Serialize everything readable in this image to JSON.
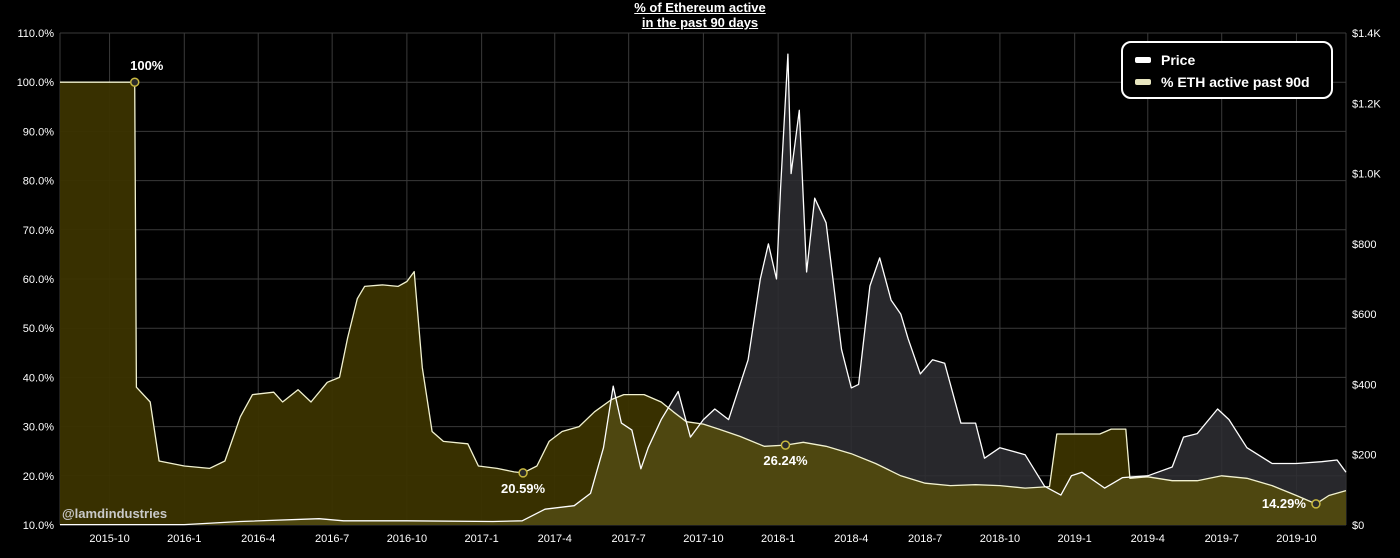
{
  "title_line1": "% of Ethereum active",
  "title_line2": "in the past 90 days",
  "watermark": "@lamdindustries",
  "legend": {
    "price_label": "Price",
    "active_label": "% ETH active past 90d"
  },
  "colors": {
    "price": "#ffffff",
    "active_line": "#f2f2d0",
    "active_fill": "#3b3300",
    "active_fill_bright": "#4e4710",
    "price_fill": "#2e2e32",
    "grid": "#3a3a3a",
    "highlight": "#c8b840"
  },
  "chart_data": {
    "type": "area",
    "title": "% of Ethereum active in the past 90 days",
    "x_ticks": [
      "2015-10",
      "2016-1",
      "2016-4",
      "2016-7",
      "2016-10",
      "2017-1",
      "2017-4",
      "2017-7",
      "2017-10",
      "2018-1",
      "2018-4",
      "2018-7",
      "2018-10",
      "2019-1",
      "2019-4",
      "2019-7",
      "2019-10"
    ],
    "y_left_ticks": [
      "10.0%",
      "20.0%",
      "30.0%",
      "40.0%",
      "50.0%",
      "60.0%",
      "70.0%",
      "80.0%",
      "90.0%",
      "100.0%",
      "110.0%"
    ],
    "y_right_ticks": [
      "$0",
      "$200",
      "$400",
      "$600",
      "$800",
      "$1.0K",
      "$1.2K",
      "$1.4K"
    ],
    "y_left_range": [
      10,
      110
    ],
    "y_right_range": [
      0,
      1400
    ],
    "x_range": [
      "2015-08-01",
      "2019-12-01"
    ],
    "grid": true,
    "legend_position": "top-right",
    "series": [
      {
        "name": "% ETH active past 90d",
        "axis": "left",
        "points": [
          [
            "2015-08-01",
            100
          ],
          [
            "2015-11-01",
            100
          ],
          [
            "2015-11-03",
            38
          ],
          [
            "2015-11-20",
            35
          ],
          [
            "2015-12-01",
            23
          ],
          [
            "2016-01-01",
            22
          ],
          [
            "2016-02-01",
            21.5
          ],
          [
            "2016-02-20",
            23
          ],
          [
            "2016-03-10",
            32
          ],
          [
            "2016-03-25",
            36.5
          ],
          [
            "2016-04-20",
            37
          ],
          [
            "2016-05-01",
            35
          ],
          [
            "2016-05-20",
            37.5
          ],
          [
            "2016-06-05",
            35
          ],
          [
            "2016-06-25",
            39
          ],
          [
            "2016-07-10",
            40
          ],
          [
            "2016-07-20",
            48
          ],
          [
            "2016-08-01",
            56
          ],
          [
            "2016-08-10",
            58.5
          ],
          [
            "2016-09-01",
            58.8
          ],
          [
            "2016-09-20",
            58.5
          ],
          [
            "2016-10-01",
            59.5
          ],
          [
            "2016-10-10",
            61.5
          ],
          [
            "2016-10-20",
            42
          ],
          [
            "2016-11-01",
            29
          ],
          [
            "2016-11-15",
            27
          ],
          [
            "2016-12-15",
            26.5
          ],
          [
            "2016-12-28",
            22
          ],
          [
            "2017-01-20",
            21.5
          ],
          [
            "2017-02-10",
            20.8
          ],
          [
            "2017-02-21",
            20.59
          ],
          [
            "2017-03-10",
            22
          ],
          [
            "2017-03-25",
            27
          ],
          [
            "2017-04-10",
            29
          ],
          [
            "2017-05-01",
            30
          ],
          [
            "2017-05-20",
            33
          ],
          [
            "2017-06-10",
            35.5
          ],
          [
            "2017-06-25",
            36.5
          ],
          [
            "2017-07-20",
            36.5
          ],
          [
            "2017-08-10",
            35
          ],
          [
            "2017-08-25",
            33
          ],
          [
            "2017-09-10",
            31
          ],
          [
            "2017-10-01",
            30.5
          ],
          [
            "2017-10-20",
            29.5
          ],
          [
            "2017-11-15",
            28
          ],
          [
            "2017-12-15",
            26
          ],
          [
            "2018-01-10",
            26.24
          ],
          [
            "2018-02-01",
            26.8
          ],
          [
            "2018-03-01",
            26
          ],
          [
            "2018-04-01",
            24.5
          ],
          [
            "2018-05-01",
            22.5
          ],
          [
            "2018-06-01",
            20
          ],
          [
            "2018-07-01",
            18.5
          ],
          [
            "2018-08-01",
            18
          ],
          [
            "2018-09-01",
            18.2
          ],
          [
            "2018-10-01",
            18
          ],
          [
            "2018-11-01",
            17.5
          ],
          [
            "2018-12-01",
            17.8
          ],
          [
            "2018-12-10",
            28.5
          ],
          [
            "2019-01-01",
            28.5
          ],
          [
            "2019-02-01",
            28.5
          ],
          [
            "2019-02-15",
            29.5
          ],
          [
            "2019-03-05",
            29.5
          ],
          [
            "2019-03-10",
            19.5
          ],
          [
            "2019-04-01",
            19.8
          ],
          [
            "2019-05-01",
            19
          ],
          [
            "2019-06-01",
            19
          ],
          [
            "2019-07-01",
            20
          ],
          [
            "2019-08-01",
            19.5
          ],
          [
            "2019-09-01",
            18
          ],
          [
            "2019-10-01",
            16
          ],
          [
            "2019-10-25",
            14.29
          ],
          [
            "2019-11-10",
            16
          ],
          [
            "2019-12-01",
            17
          ]
        ]
      },
      {
        "name": "Price",
        "axis": "right",
        "points": [
          [
            "2015-08-01",
            1
          ],
          [
            "2016-01-01",
            1
          ],
          [
            "2016-03-10",
            10
          ],
          [
            "2016-06-15",
            18
          ],
          [
            "2016-07-15",
            12
          ],
          [
            "2016-10-01",
            12
          ],
          [
            "2017-01-15",
            10
          ],
          [
            "2017-02-20",
            12
          ],
          [
            "2017-03-20",
            45
          ],
          [
            "2017-04-25",
            55
          ],
          [
            "2017-05-15",
            90
          ],
          [
            "2017-05-31",
            220
          ],
          [
            "2017-06-12",
            395
          ],
          [
            "2017-06-22",
            290
          ],
          [
            "2017-07-05",
            270
          ],
          [
            "2017-07-16",
            160
          ],
          [
            "2017-07-25",
            220
          ],
          [
            "2017-08-10",
            300
          ],
          [
            "2017-08-31",
            380
          ],
          [
            "2017-09-15",
            250
          ],
          [
            "2017-10-01",
            300
          ],
          [
            "2017-10-15",
            330
          ],
          [
            "2017-11-01",
            300
          ],
          [
            "2017-11-25",
            470
          ],
          [
            "2017-12-10",
            700
          ],
          [
            "2017-12-20",
            800
          ],
          [
            "2017-12-30",
            700
          ],
          [
            "2018-01-04",
            960
          ],
          [
            "2018-01-13",
            1340
          ],
          [
            "2018-01-17",
            1000
          ],
          [
            "2018-01-27",
            1180
          ],
          [
            "2018-02-05",
            720
          ],
          [
            "2018-02-15",
            930
          ],
          [
            "2018-03-01",
            860
          ],
          [
            "2018-03-20",
            500
          ],
          [
            "2018-04-01",
            390
          ],
          [
            "2018-04-10",
            400
          ],
          [
            "2018-04-24",
            680
          ],
          [
            "2018-05-06",
            760
          ],
          [
            "2018-05-20",
            640
          ],
          [
            "2018-06-01",
            600
          ],
          [
            "2018-06-10",
            530
          ],
          [
            "2018-06-25",
            430
          ],
          [
            "2018-07-10",
            470
          ],
          [
            "2018-07-25",
            460
          ],
          [
            "2018-08-14",
            290
          ],
          [
            "2018-09-01",
            290
          ],
          [
            "2018-09-12",
            190
          ],
          [
            "2018-10-01",
            220
          ],
          [
            "2018-11-01",
            200
          ],
          [
            "2018-11-25",
            110
          ],
          [
            "2018-12-15",
            85
          ],
          [
            "2018-12-28",
            140
          ],
          [
            "2019-01-10",
            150
          ],
          [
            "2019-02-07",
            105
          ],
          [
            "2019-03-01",
            135
          ],
          [
            "2019-04-01",
            140
          ],
          [
            "2019-05-01",
            165
          ],
          [
            "2019-05-15",
            250
          ],
          [
            "2019-06-01",
            260
          ],
          [
            "2019-06-26",
            330
          ],
          [
            "2019-07-10",
            300
          ],
          [
            "2019-08-01",
            220
          ],
          [
            "2019-09-01",
            175
          ],
          [
            "2019-10-01",
            175
          ],
          [
            "2019-11-01",
            180
          ],
          [
            "2019-11-20",
            185
          ],
          [
            "2019-12-01",
            150
          ]
        ]
      }
    ],
    "annotations": [
      {
        "label": "100%",
        "x": "2015-11-01",
        "y": 100
      },
      {
        "label": "20.59%",
        "x": "2017-02-21",
        "y": 20.59
      },
      {
        "label": "26.24%",
        "x": "2018-01-10",
        "y": 26.24
      },
      {
        "label": "14.29%",
        "x": "2019-10-25",
        "y": 14.29
      }
    ]
  }
}
